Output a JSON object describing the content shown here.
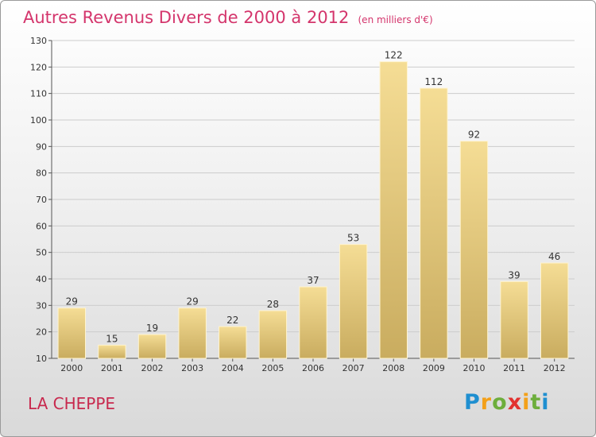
{
  "header": {
    "title": "Autres Revenus Divers de 2000 à 2012",
    "subtitle": "(en milliers d'€)"
  },
  "footer": {
    "place": "LA CHEPPE",
    "logo": "Proxiti"
  },
  "colors": {
    "title": "#d4356c",
    "bar_light": "#f5dd95",
    "bar_dark": "#c9ac5f",
    "grid": "#cccccc"
  },
  "chart_data": {
    "type": "bar",
    "title": "Autres Revenus Divers de 2000 à 2012",
    "subtitle": "(en milliers d'€)",
    "categories": [
      "2000",
      "2001",
      "2002",
      "2003",
      "2004",
      "2005",
      "2006",
      "2007",
      "2008",
      "2009",
      "2010",
      "2011",
      "2012"
    ],
    "values": [
      29,
      15,
      19,
      29,
      22,
      28,
      37,
      53,
      122,
      112,
      92,
      39,
      46
    ],
    "ylim": [
      10,
      130
    ],
    "yticks": [
      10,
      20,
      30,
      40,
      50,
      60,
      70,
      80,
      90,
      100,
      110,
      120,
      130
    ],
    "grid": true,
    "legend": "none"
  }
}
